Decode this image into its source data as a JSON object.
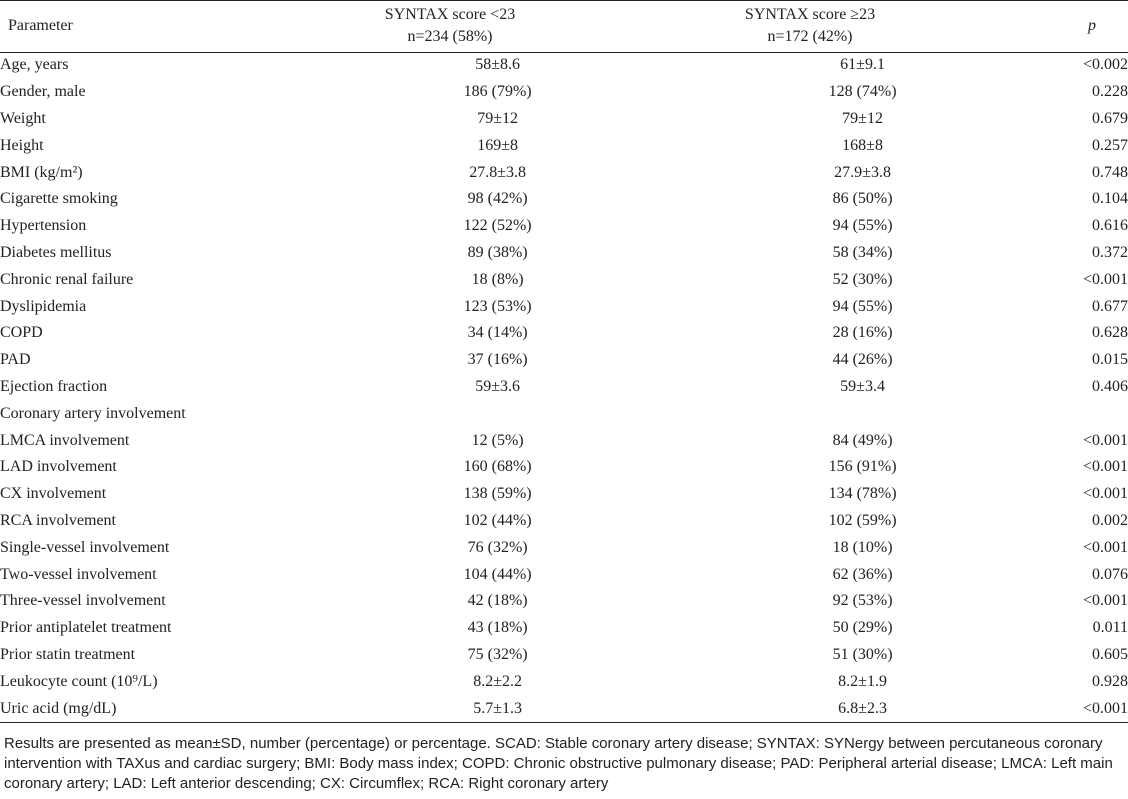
{
  "header": {
    "param": "Parameter",
    "group1_title": "SYNTAX score <23",
    "group1_n": "n=234 (58%)",
    "group2_title": "SYNTAX score ≥23",
    "group2_n": "n=172 (42%)",
    "p": "p"
  },
  "rows": [
    {
      "name": "Age, years",
      "a": "58±8.6",
      "b": "61±9.1",
      "p": "<0.002"
    },
    {
      "name": "Gender, male",
      "a": "186 (79%)",
      "b": "128 (74%)",
      "p": "0.228"
    },
    {
      "name": "Weight",
      "a": "79±12",
      "b": "79±12",
      "p": "0.679"
    },
    {
      "name": "Height",
      "a": "169±8",
      "b": "168±8",
      "p": "0.257"
    },
    {
      "name": "BMI (kg/m²)",
      "a": "27.8±3.8",
      "b": "27.9±3.8",
      "p": "0.748"
    },
    {
      "name": "Cigarette smoking",
      "a": "98 (42%)",
      "b": "86 (50%)",
      "p": "0.104"
    },
    {
      "name": "Hypertension",
      "a": "122 (52%)",
      "b": "94 (55%)",
      "p": "0.616"
    },
    {
      "name": "Diabetes mellitus",
      "a": "89 (38%)",
      "b": "58 (34%)",
      "p": "0.372"
    },
    {
      "name": "Chronic renal failure",
      "a": "18 (8%)",
      "b": "52 (30%)",
      "p": "<0.001"
    },
    {
      "name": "Dyslipidemia",
      "a": "123 (53%)",
      "b": "94 (55%)",
      "p": "0.677"
    },
    {
      "name": "COPD",
      "a": "34 (14%)",
      "b": "28 (16%)",
      "p": "0.628"
    },
    {
      "name": "PAD",
      "a": "37 (16%)",
      "b": "44 (26%)",
      "p": "0.015"
    },
    {
      "name": "Ejection fraction",
      "a": "59±3.6",
      "b": "59±3.4",
      "p": "0.406"
    },
    {
      "name": "Coronary artery involvement",
      "a": "",
      "b": "",
      "p": ""
    },
    {
      "name": "LMCA involvement",
      "a": "12 (5%)",
      "b": "84 (49%)",
      "p": "<0.001"
    },
    {
      "name": "LAD involvement",
      "a": "160 (68%)",
      "b": "156 (91%)",
      "p": "<0.001"
    },
    {
      "name": "CX involvement",
      "a": "138 (59%)",
      "b": "134 (78%)",
      "p": "<0.001"
    },
    {
      "name": "RCA involvement",
      "a": "102 (44%)",
      "b": "102 (59%)",
      "p": "0.002"
    },
    {
      "name": "Single-vessel involvement",
      "a": "76 (32%)",
      "b": "18 (10%)",
      "p": "<0.001"
    },
    {
      "name": "Two-vessel involvement",
      "a": "104 (44%)",
      "b": "62 (36%)",
      "p": "0.076"
    },
    {
      "name": "Three-vessel involvement",
      "a": "42 (18%)",
      "b": "92 (53%)",
      "p": "<0.001"
    },
    {
      "name": "Prior antiplatelet treatment",
      "a": "43 (18%)",
      "b": "50 (29%)",
      "p": "0.011"
    },
    {
      "name": "Prior statin treatment",
      "a": "75 (32%)",
      "b": "51 (30%)",
      "p": "0.605"
    },
    {
      "name": "Leukocyte count (10⁹/L)",
      "a": "8.2±2.2",
      "b": "8.2±1.9",
      "p": "0.928"
    },
    {
      "name": "Uric acid (mg/dL)",
      "a": "5.7±1.3",
      "b": "6.8±2.3",
      "p": "<0.001"
    }
  ],
  "footnote": "Results are presented as mean±SD, number (percentage) or percentage. SCAD: Stable coronary artery disease; SYNTAX: SYNergy between percutaneous coronary intervention with TAXus and cardiac surgery; BMI: Body mass index; COPD: Chronic obstructive pulmonary disease; PAD: Peripheral arterial disease; LMCA: Left main coronary artery; LAD: Left anterior descending; CX: Circumflex; RCA: Right coronary artery"
}
